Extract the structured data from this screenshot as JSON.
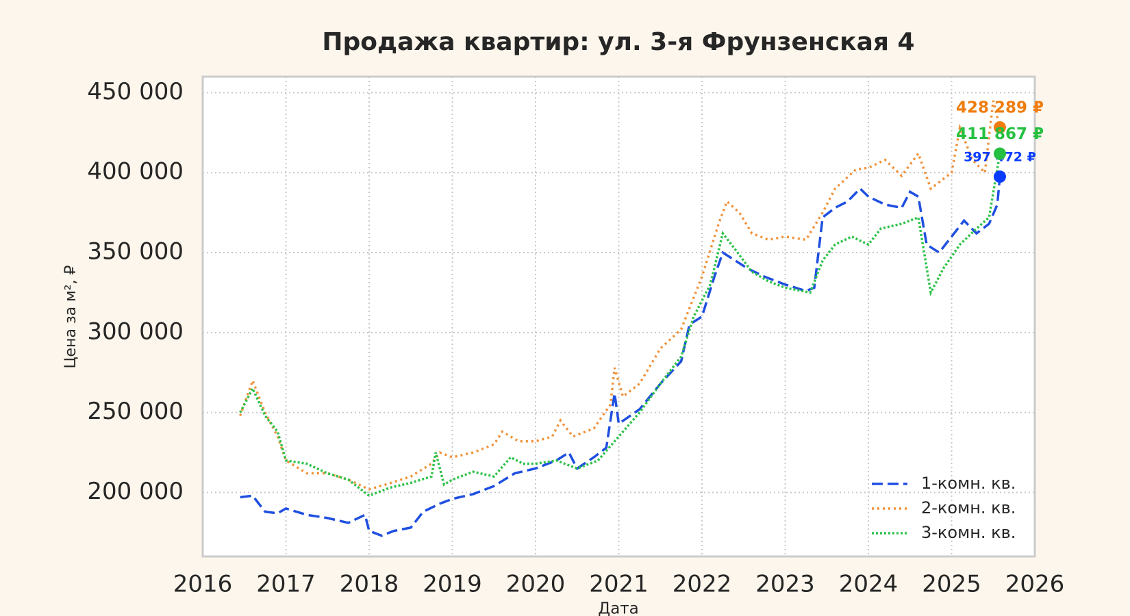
{
  "chart_data": {
    "type": "line",
    "title": "Продажа квартир: ул. 3-я Фрунзенская 4",
    "x_label": "Дата",
    "y_label": "Цена за м², ₽",
    "xlim": [
      2016,
      2026
    ],
    "xticks": [
      2016,
      2017,
      2018,
      2019,
      2020,
      2021,
      2022,
      2023,
      2024,
      2025,
      2026
    ],
    "ylim": [
      160000,
      460000
    ],
    "yticks": [
      {
        "value": 200000,
        "label": "200 000"
      },
      {
        "value": 250000,
        "label": "250 000"
      },
      {
        "value": 300000,
        "label": "300 000"
      },
      {
        "value": 350000,
        "label": "350 000"
      },
      {
        "value": 400000,
        "label": "400 000"
      },
      {
        "value": 450000,
        "label": "450 000"
      }
    ],
    "grid": true,
    "legend": "lower right",
    "series": [
      {
        "name": "1-комн. кв.",
        "color": "#1f4fe0",
        "marker_color": "#0a3cff",
        "dash": "dashed",
        "x": [
          2016.45,
          2016.6,
          2016.75,
          2016.9,
          2017.0,
          2017.25,
          2017.5,
          2017.75,
          2017.95,
          2018.0,
          2018.15,
          2018.3,
          2018.5,
          2018.65,
          2018.85,
          2019.0,
          2019.25,
          2019.5,
          2019.75,
          2020.0,
          2020.25,
          2020.4,
          2020.5,
          2020.7,
          2020.85,
          2020.95,
          2021.0,
          2021.25,
          2021.5,
          2021.75,
          2021.85,
          2022.0,
          2022.15,
          2022.25,
          2022.4,
          2022.55,
          2022.75,
          2023.0,
          2023.25,
          2023.35,
          2023.45,
          2023.6,
          2023.75,
          2023.9,
          2024.0,
          2024.2,
          2024.4,
          2024.5,
          2024.6,
          2024.7,
          2024.85,
          2025.0,
          2025.15,
          2025.3,
          2025.45,
          2025.55,
          2025.58
        ],
        "values": [
          197000,
          198000,
          188000,
          187000,
          190000,
          186000,
          184000,
          181000,
          186000,
          176000,
          173000,
          176000,
          178000,
          188000,
          193000,
          196000,
          199000,
          204000,
          212000,
          215000,
          220000,
          225000,
          215000,
          222000,
          228000,
          262000,
          243000,
          252000,
          268000,
          282000,
          305000,
          310000,
          335000,
          350000,
          345000,
          340000,
          335000,
          330000,
          326000,
          328000,
          372000,
          378000,
          382000,
          390000,
          385000,
          380000,
          378000,
          388000,
          385000,
          355000,
          350000,
          360000,
          370000,
          362000,
          368000,
          380000,
          397472
        ],
        "value_labels": [
          null,
          null,
          null,
          null,
          null,
          null,
          null,
          null,
          null,
          null,
          null,
          null,
          null,
          null,
          null,
          null,
          null,
          null,
          null,
          null,
          null,
          null,
          null,
          null,
          null,
          null,
          null,
          null,
          null,
          null,
          null,
          null,
          null,
          null,
          null,
          null,
          null,
          null,
          null,
          null,
          null,
          null,
          null,
          null,
          null,
          null,
          null,
          null,
          null,
          null,
          null,
          null,
          null,
          null,
          null,
          null,
          "397 472 ₽"
        ]
      },
      {
        "name": "2-комн. кв.",
        "color": "#f0923a",
        "marker_color": "#f07d0e",
        "dash": "dotted",
        "x": [
          2016.45,
          2016.6,
          2016.75,
          2016.9,
          2017.0,
          2017.25,
          2017.5,
          2017.75,
          2018.0,
          2018.2,
          2018.5,
          2018.75,
          2018.85,
          2019.0,
          2019.25,
          2019.5,
          2019.6,
          2019.8,
          2020.0,
          2020.2,
          2020.3,
          2020.45,
          2020.7,
          2020.9,
          2020.95,
          2021.05,
          2021.25,
          2021.5,
          2021.75,
          2022.0,
          2022.2,
          2022.3,
          2022.45,
          2022.6,
          2022.8,
          2023.0,
          2023.25,
          2023.45,
          2023.6,
          2023.85,
          2024.0,
          2024.2,
          2024.4,
          2024.6,
          2024.75,
          2025.0,
          2025.1,
          2025.25,
          2025.4,
          2025.5,
          2025.58
        ],
        "values": [
          248000,
          270000,
          250000,
          235000,
          220000,
          212000,
          212000,
          208000,
          202000,
          205000,
          210000,
          218000,
          225000,
          222000,
          225000,
          230000,
          238000,
          232000,
          232000,
          235000,
          245000,
          235000,
          240000,
          255000,
          278000,
          260000,
          268000,
          290000,
          302000,
          335000,
          368000,
          382000,
          375000,
          362000,
          358000,
          360000,
          358000,
          375000,
          390000,
          402000,
          403000,
          408000,
          398000,
          412000,
          390000,
          400000,
          428000,
          408000,
          400000,
          445000,
          428289
        ],
        "value_labels": [
          null,
          null,
          null,
          null,
          null,
          null,
          null,
          null,
          null,
          null,
          null,
          null,
          null,
          null,
          null,
          null,
          null,
          null,
          null,
          null,
          null,
          null,
          null,
          null,
          null,
          null,
          null,
          null,
          null,
          null,
          null,
          null,
          null,
          null,
          null,
          null,
          null,
          null,
          null,
          null,
          null,
          null,
          null,
          null,
          null,
          null,
          null,
          null,
          null,
          null,
          "428 289 ₽"
        ]
      },
      {
        "name": "3-комн. кв.",
        "color": "#2ec24a",
        "marker_color": "#25c040",
        "dash": "dashdot",
        "x": [
          2016.45,
          2016.6,
          2016.75,
          2016.9,
          2017.0,
          2017.25,
          2017.5,
          2017.75,
          2018.0,
          2018.25,
          2018.5,
          2018.75,
          2018.8,
          2018.9,
          2019.0,
          2019.25,
          2019.5,
          2019.7,
          2019.85,
          2020.0,
          2020.25,
          2020.5,
          2020.75,
          2021.0,
          2021.25,
          2021.5,
          2021.75,
          2021.9,
          2022.1,
          2022.25,
          2022.4,
          2022.6,
          2022.8,
          2023.0,
          2023.3,
          2023.45,
          2023.6,
          2023.8,
          2024.0,
          2024.15,
          2024.4,
          2024.6,
          2024.75,
          2024.9,
          2025.1,
          2025.3,
          2025.45,
          2025.58
        ],
        "values": [
          250000,
          265000,
          248000,
          238000,
          220000,
          218000,
          212000,
          208000,
          198000,
          203000,
          206000,
          210000,
          225000,
          205000,
          208000,
          213000,
          210000,
          222000,
          218000,
          218000,
          220000,
          215000,
          220000,
          235000,
          250000,
          268000,
          285000,
          310000,
          330000,
          362000,
          352000,
          338000,
          332000,
          328000,
          325000,
          345000,
          355000,
          360000,
          355000,
          365000,
          368000,
          372000,
          325000,
          340000,
          355000,
          365000,
          372000,
          411867
        ],
        "value_labels": [
          null,
          null,
          null,
          null,
          null,
          null,
          null,
          null,
          null,
          null,
          null,
          null,
          null,
          null,
          null,
          null,
          null,
          null,
          null,
          null,
          null,
          null,
          null,
          null,
          null,
          null,
          null,
          null,
          null,
          null,
          null,
          null,
          null,
          null,
          null,
          null,
          null,
          null,
          null,
          null,
          null,
          null,
          null,
          null,
          null,
          null,
          null,
          "411 867 ₽"
        ]
      }
    ]
  }
}
